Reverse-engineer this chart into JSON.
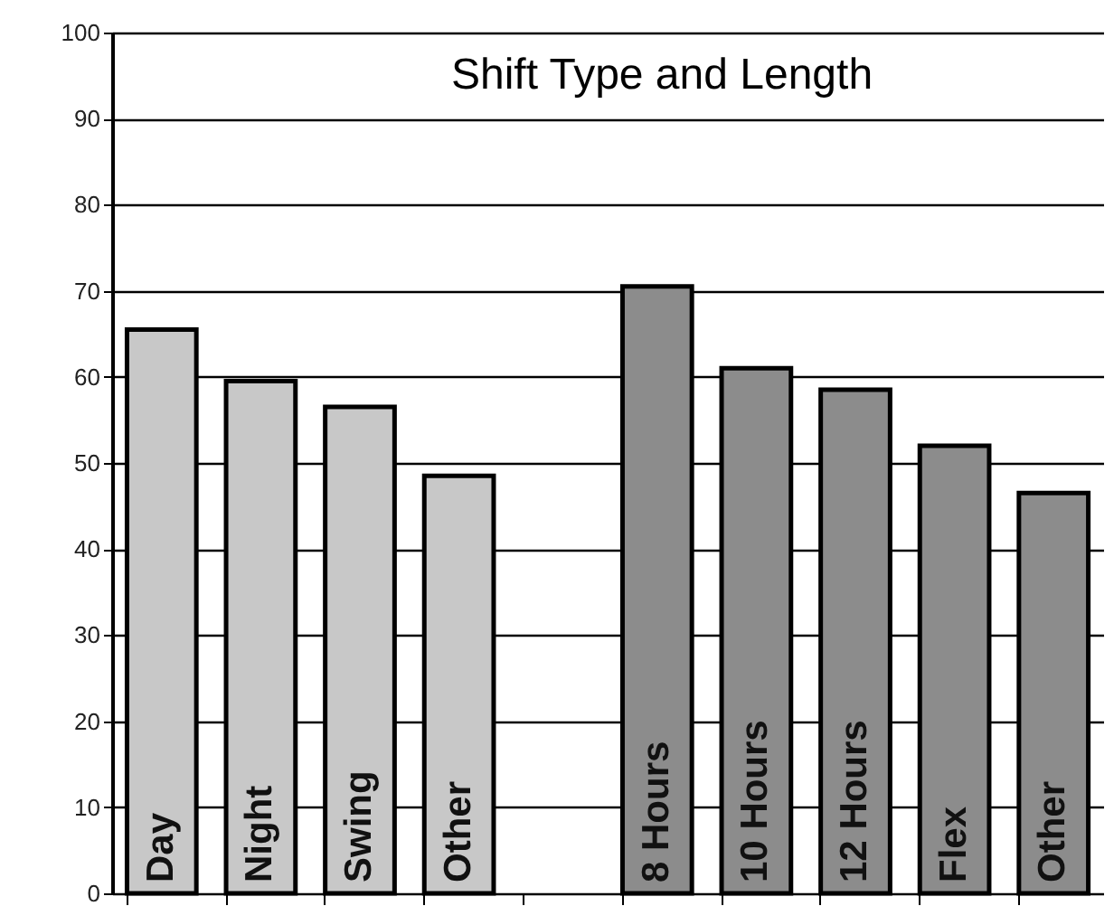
{
  "chart_data": {
    "type": "bar",
    "title": "Shift Type and Length",
    "categories": [
      "Day",
      "Night",
      "Swing",
      "Other",
      null,
      "8 Hours",
      "10 Hours",
      "12 Hours",
      "Flex",
      "Other"
    ],
    "series": [
      {
        "color": "#c8c8c8",
        "values": [
          65.5,
          59.5,
          56.5,
          48.5,
          null,
          null,
          null,
          null,
          null,
          null
        ]
      },
      {
        "color": "#8c8c8c",
        "values": [
          null,
          null,
          null,
          null,
          null,
          70.5,
          61,
          58.5,
          52,
          46.5
        ]
      }
    ],
    "ylim": [
      0,
      100
    ],
    "yticks": [
      0,
      10,
      20,
      30,
      40,
      50,
      60,
      70,
      80,
      90,
      100
    ],
    "grid": "y",
    "legend": false
  }
}
